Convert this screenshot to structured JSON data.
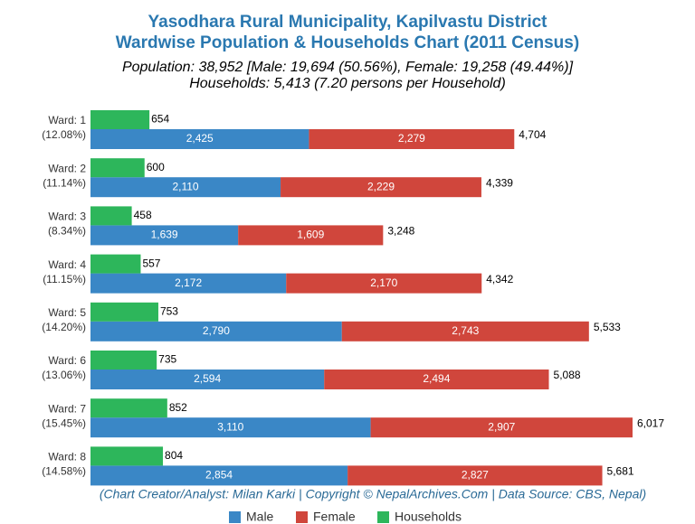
{
  "chart_data": {
    "type": "bar",
    "title": [
      "Yasodhara Rural Municipality, Kapilvastu District",
      "Wardwise Population & Households Chart (2011 Census)"
    ],
    "subtitle": [
      "Population: 38,952 [Male: 19,694 (50.56%), Female: 19,258 (49.44%)]",
      "Households: 5,413 (7.20 persons per Household)"
    ],
    "categories": [
      "Ward: 1",
      "Ward: 2",
      "Ward: 3",
      "Ward: 4",
      "Ward: 5",
      "Ward: 6",
      "Ward: 7",
      "Ward: 8"
    ],
    "category_shares": [
      "(12.08%)",
      "(11.14%)",
      "(8.34%)",
      "(11.15%)",
      "(14.20%)",
      "(13.06%)",
      "(15.45%)",
      "(14.58%)"
    ],
    "series": [
      {
        "name": "Male",
        "color": "#3a87c6",
        "stack": "population",
        "values": [
          2425,
          2110,
          1639,
          2172,
          2790,
          2594,
          3110,
          2854
        ],
        "value_labels": [
          "2,425",
          "2,110",
          "1,639",
          "2,172",
          "2,790",
          "2,594",
          "3,110",
          "2,854"
        ]
      },
      {
        "name": "Female",
        "color": "#d0463c",
        "stack": "population",
        "values": [
          2279,
          2229,
          1609,
          2170,
          2743,
          2494,
          2907,
          2827
        ],
        "value_labels": [
          "2,279",
          "2,229",
          "1,609",
          "2,170",
          "2,743",
          "2,494",
          "2,907",
          "2,827"
        ]
      },
      {
        "name": "Households",
        "color": "#2db65b",
        "stack": "households",
        "values": [
          654,
          600,
          458,
          557,
          753,
          735,
          852,
          804
        ]
      }
    ],
    "totals": [
      4704,
      4339,
      3248,
      4342,
      5533,
      5088,
      6017,
      5681
    ],
    "total_labels": [
      "4,704",
      "4,339",
      "3,248",
      "4,342",
      "5,533",
      "5,088",
      "6,017",
      "5,681"
    ],
    "footer": "(Chart Creator/Analyst: Milan Karki | Copyright © NepalArchives.Com | Data Source: CBS, Nepal)",
    "legend": "bottom"
  }
}
